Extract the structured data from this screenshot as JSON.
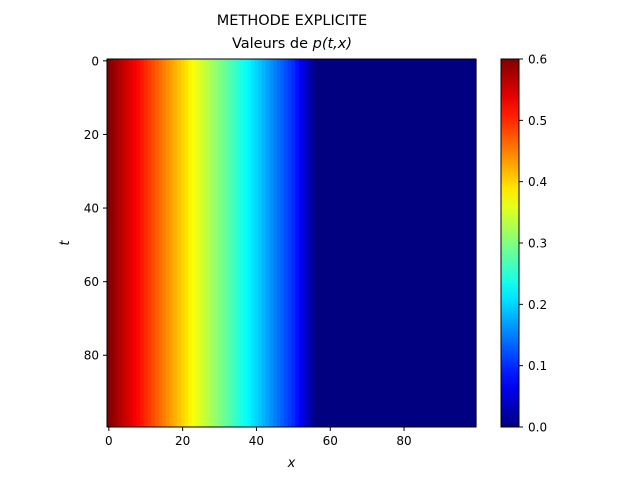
{
  "chart_data": {
    "type": "heatmap",
    "title_line1": "METHODE EXPLICITE",
    "title_line2_prefix": "Valeurs de ",
    "title_line2_math": "p(t,x)",
    "xlabel": "x",
    "ylabel": "t",
    "x_range": [
      -0.5,
      99.5
    ],
    "y_range": [
      -0.5,
      99.5
    ],
    "x_ticks": [
      0,
      20,
      40,
      60,
      80
    ],
    "y_ticks": [
      0,
      20,
      40,
      60,
      80
    ],
    "colormap": "jet",
    "clim": [
      0.0,
      0.6
    ],
    "colorbar_ticks": [
      0.0,
      0.1,
      0.2,
      0.3,
      0.4,
      0.5,
      0.6
    ],
    "colorbar_tick_labels": [
      "0.0",
      "0.1",
      "0.2",
      "0.3",
      "0.4",
      "0.5",
      "0.6"
    ],
    "constant_along": "t",
    "profile_x": [
      0,
      10,
      20,
      30,
      40,
      50,
      55,
      56,
      99
    ],
    "profile_p": [
      0.6,
      0.5,
      0.4,
      0.3,
      0.2,
      0.1,
      0.02,
      0.0,
      0.0
    ],
    "grid": false
  }
}
